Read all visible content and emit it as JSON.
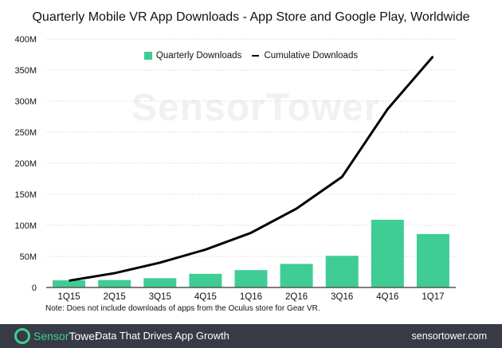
{
  "chart_data": {
    "type": "bar",
    "title": "Quarterly Mobile VR App Downloads - App Store and Google Play, Worldwide",
    "categories": [
      "1Q15",
      "2Q15",
      "3Q15",
      "4Q15",
      "1Q16",
      "2Q16",
      "3Q16",
      "4Q16",
      "1Q17"
    ],
    "series": [
      {
        "name": "Quarterly Downloads",
        "type": "bar",
        "color": "#3fcd95",
        "values": [
          11.5,
          12,
          15,
          22,
          28,
          38,
          51,
          109,
          86
        ]
      },
      {
        "name": "Cumulative Downloads",
        "type": "line",
        "color": "#000000",
        "values": [
          11,
          23,
          40,
          61,
          88,
          127,
          178,
          287,
          372
        ]
      }
    ],
    "ylim": [
      0,
      400
    ],
    "yticks": [
      "0",
      "50M",
      "100M",
      "150M",
      "200M",
      "250M",
      "300M",
      "350M",
      "400M"
    ],
    "grid": true,
    "legend_position": "top-center",
    "note": "Note: Does not include downloads of apps from the Oculus store for Gear VR."
  },
  "watermark": "SensorTower",
  "footer": {
    "brand_part1": "Sensor",
    "brand_part2": "Tower",
    "tagline": "Data That Drives App Growth",
    "url": "sensortower.com"
  }
}
